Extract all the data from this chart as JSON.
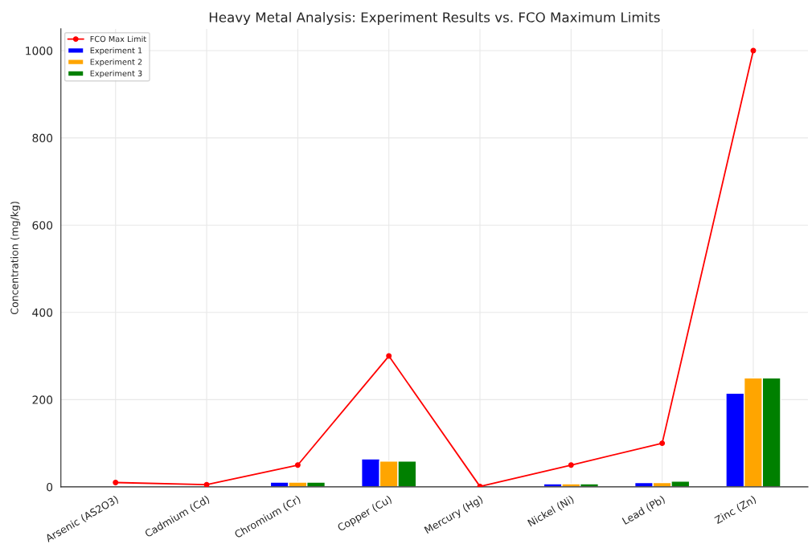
{
  "chart_data": {
    "type": "bar",
    "title": "Heavy Metal Analysis: Experiment Results vs. FCO Maximum Limits",
    "ylabel": "Concentration (mg/kg)",
    "categories": [
      "Arsenic (AS2O3)",
      "Cadmium (Cd)",
      "Chromium (Cr)",
      "Copper (Cu)",
      "Mercury (Hg)",
      "Nickel (Ni)",
      "Lead (Pb)",
      "Zinc (Zn)"
    ],
    "series": [
      {
        "name": "FCO Max Limit",
        "type": "line",
        "color": "#ff0000",
        "marker": "circle",
        "values": [
          10,
          5,
          50,
          300,
          1,
          50,
          100,
          1000
        ]
      },
      {
        "name": "Experiment 1",
        "color": "#0000ff",
        "values": [
          null,
          null,
          11,
          64,
          null,
          7,
          10,
          215
        ]
      },
      {
        "name": "Experiment 2",
        "color": "#ffa500",
        "values": [
          null,
          null,
          11,
          59,
          null,
          7,
          10,
          250
        ]
      },
      {
        "name": "Experiment 3",
        "color": "#008000",
        "values": [
          null,
          null,
          11,
          59,
          null,
          7,
          13,
          250
        ]
      }
    ],
    "ylim": [
      0,
      1050
    ],
    "yticks": [
      0,
      200,
      400,
      600,
      800,
      1000
    ],
    "grid": true,
    "legend": "top left"
  }
}
